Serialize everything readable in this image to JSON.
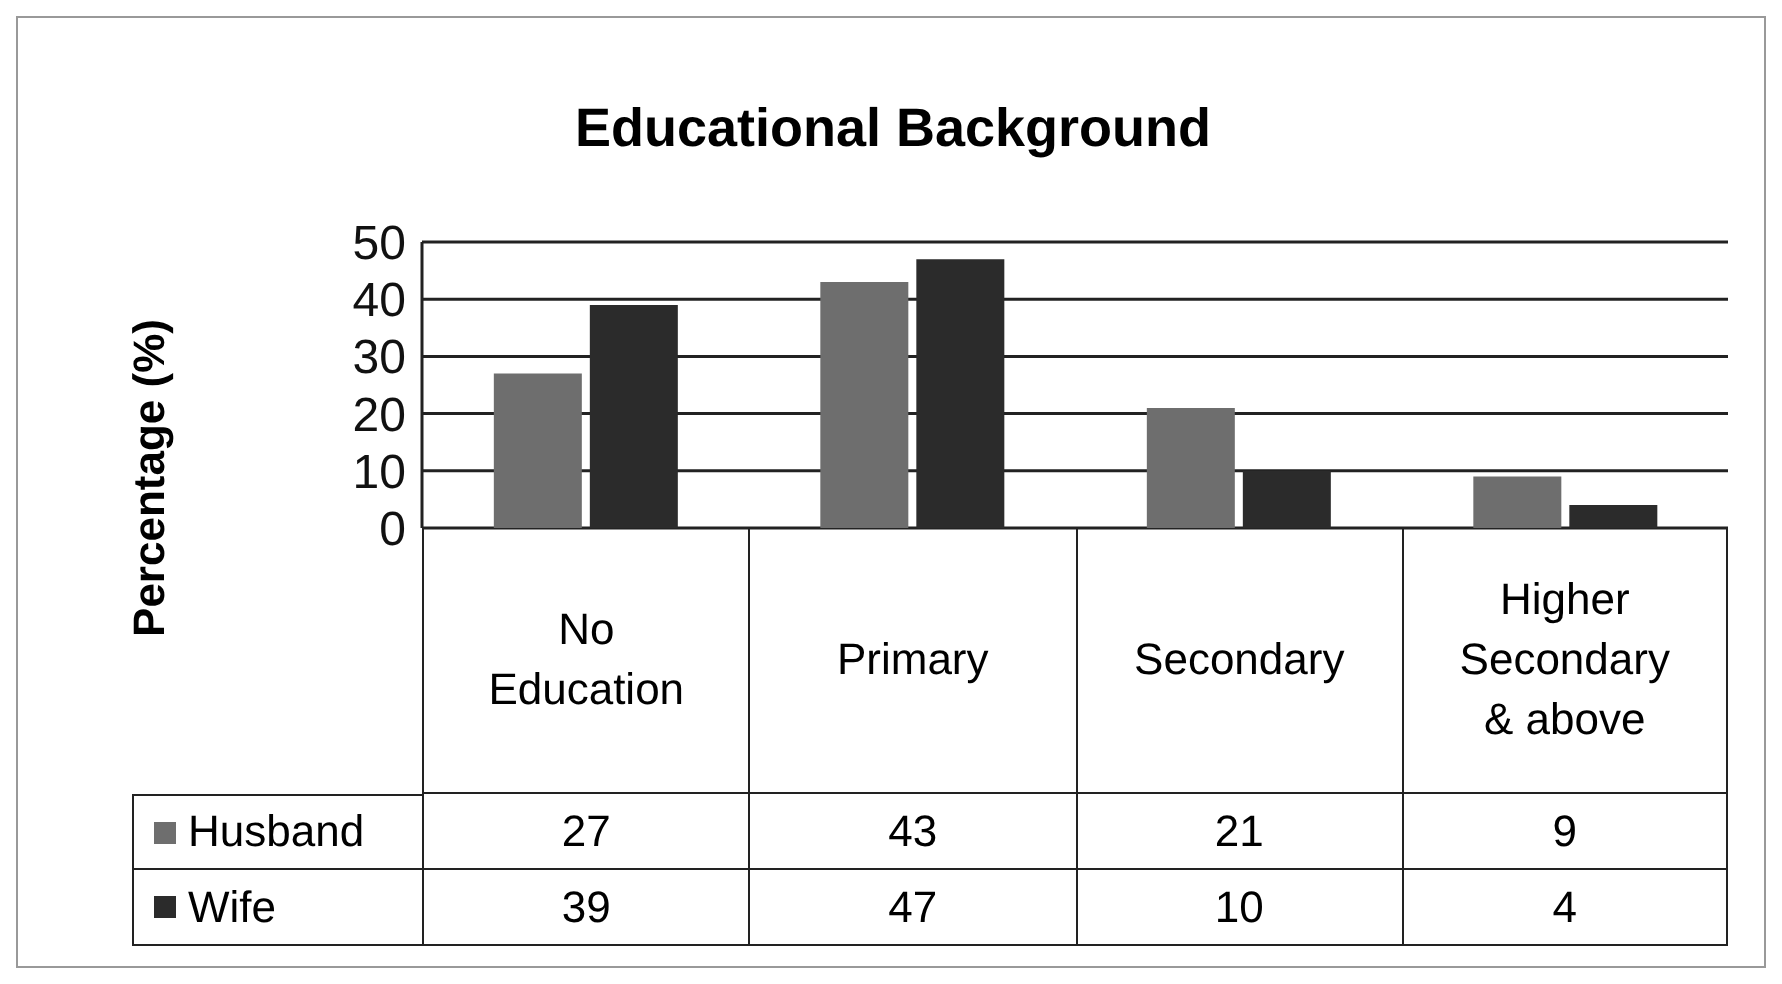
{
  "chart_data": {
    "type": "bar",
    "title": "Educational Background",
    "ylabel": "Percentage (%)",
    "categories": [
      "No Education",
      "Primary",
      "Secondary",
      "Higher Secondary & above"
    ],
    "series": [
      {
        "name": "Husband",
        "color": "#6e6e6e",
        "values": [
          27,
          43,
          21,
          9
        ]
      },
      {
        "name": "Wife",
        "color": "#2b2b2b",
        "values": [
          39,
          47,
          10,
          4
        ]
      }
    ],
    "ylim": [
      0,
      50
    ],
    "yticks": [
      0,
      10,
      20,
      30,
      40,
      50
    ],
    "grid": "y",
    "legend": "bottom",
    "data_labels": true
  }
}
